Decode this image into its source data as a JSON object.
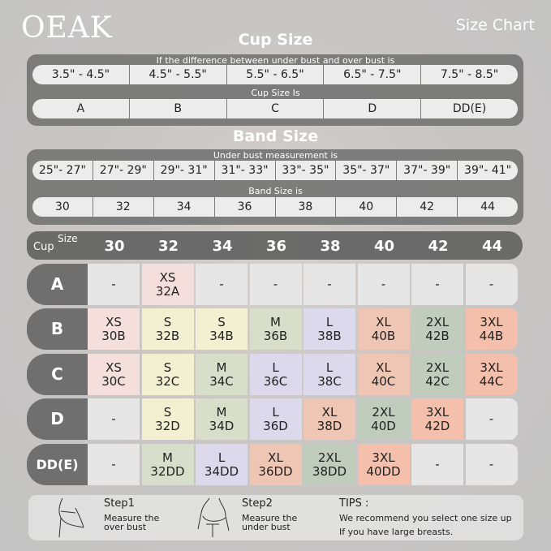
{
  "brand": "OEAK",
  "page_title": "Size Chart",
  "cup_section": {
    "title": "Cup Size",
    "difference_label": "If the  difference between under bust and over bust is",
    "differences": [
      "3.5\" -  4.5\"",
      "4.5\" -  5.5\"",
      "5.5\" -  6.5\"",
      "6.5\" -  7.5\"",
      "7.5\" -  8.5\""
    ],
    "cup_label": "Cup Size Is",
    "cups": [
      "A",
      "B",
      "C",
      "D",
      "DD(E)"
    ]
  },
  "band_section": {
    "title": "Band Size",
    "measure_label": "Under bust measurement is",
    "measurements": [
      "25\"- 27\"",
      "27\"- 29\"",
      "29\"- 31\"",
      "31\"- 33\"",
      "33\"- 35\"",
      "35\"- 37\"",
      "37\"- 39\"",
      "39\"- 41\""
    ],
    "band_label": "Band Size is",
    "bands": [
      "30",
      "32",
      "34",
      "36",
      "38",
      "40",
      "42",
      "44"
    ]
  },
  "grid": {
    "corner_cup": "Cup",
    "corner_size": "Size",
    "columns": [
      "30",
      "32",
      "34",
      "36",
      "38",
      "40",
      "42",
      "44"
    ],
    "size_colors": {
      "XS": "#f5dfdd",
      "S": "#f3efd1",
      "M": "#d7dfcb",
      "L": "#dcd9ec",
      "XL": "#efc6b4",
      "2XL": "#c0ccbc",
      "3XL": "#f4bfab",
      "-": "#e6e6e6"
    },
    "rows": [
      {
        "cup": "A",
        "cells": [
          [
            "-",
            ""
          ],
          [
            "XS",
            "32A"
          ],
          [
            "-",
            ""
          ],
          [
            "-",
            ""
          ],
          [
            "-",
            ""
          ],
          [
            "-",
            ""
          ],
          [
            "-",
            ""
          ],
          [
            "-",
            ""
          ]
        ]
      },
      {
        "cup": "B",
        "cells": [
          [
            "XS",
            "30B"
          ],
          [
            "S",
            "32B"
          ],
          [
            "S",
            "34B"
          ],
          [
            "M",
            "36B"
          ],
          [
            "L",
            "38B"
          ],
          [
            "XL",
            "40B"
          ],
          [
            "2XL",
            "42B"
          ],
          [
            "3XL",
            "44B"
          ]
        ]
      },
      {
        "cup": "C",
        "cells": [
          [
            "XS",
            "30C"
          ],
          [
            "S",
            "32C"
          ],
          [
            "M",
            "34C"
          ],
          [
            "L",
            "36C"
          ],
          [
            "L",
            "38C"
          ],
          [
            "XL",
            "40C"
          ],
          [
            "2XL",
            "42C"
          ],
          [
            "3XL",
            "44C"
          ]
        ]
      },
      {
        "cup": "D",
        "cells": [
          [
            "-",
            ""
          ],
          [
            "S",
            "32D"
          ],
          [
            "M",
            "34D"
          ],
          [
            "L",
            "36D"
          ],
          [
            "XL",
            "38D"
          ],
          [
            "2XL",
            "40D"
          ],
          [
            "3XL",
            "42D"
          ],
          [
            "-",
            ""
          ]
        ]
      },
      {
        "cup": "DD(E)",
        "cells": [
          [
            "-",
            ""
          ],
          [
            "M",
            "32DD"
          ],
          [
            "L",
            "34DD"
          ],
          [
            "XL",
            "36DD"
          ],
          [
            "2XL",
            "38DD"
          ],
          [
            "3XL",
            "40DD"
          ],
          [
            "-",
            ""
          ],
          [
            "-",
            ""
          ]
        ]
      }
    ]
  },
  "tips": {
    "step1_title": "Step1",
    "step1_text1": "Measure the",
    "step1_text2": "over bust",
    "step2_title": "Step2",
    "step2_text1": "Measure the",
    "step2_text2": "under bust",
    "tips_title": "TIPS :",
    "tips_text1": "We recommend you select one size up",
    "tips_text2": "If you have large breasts."
  }
}
